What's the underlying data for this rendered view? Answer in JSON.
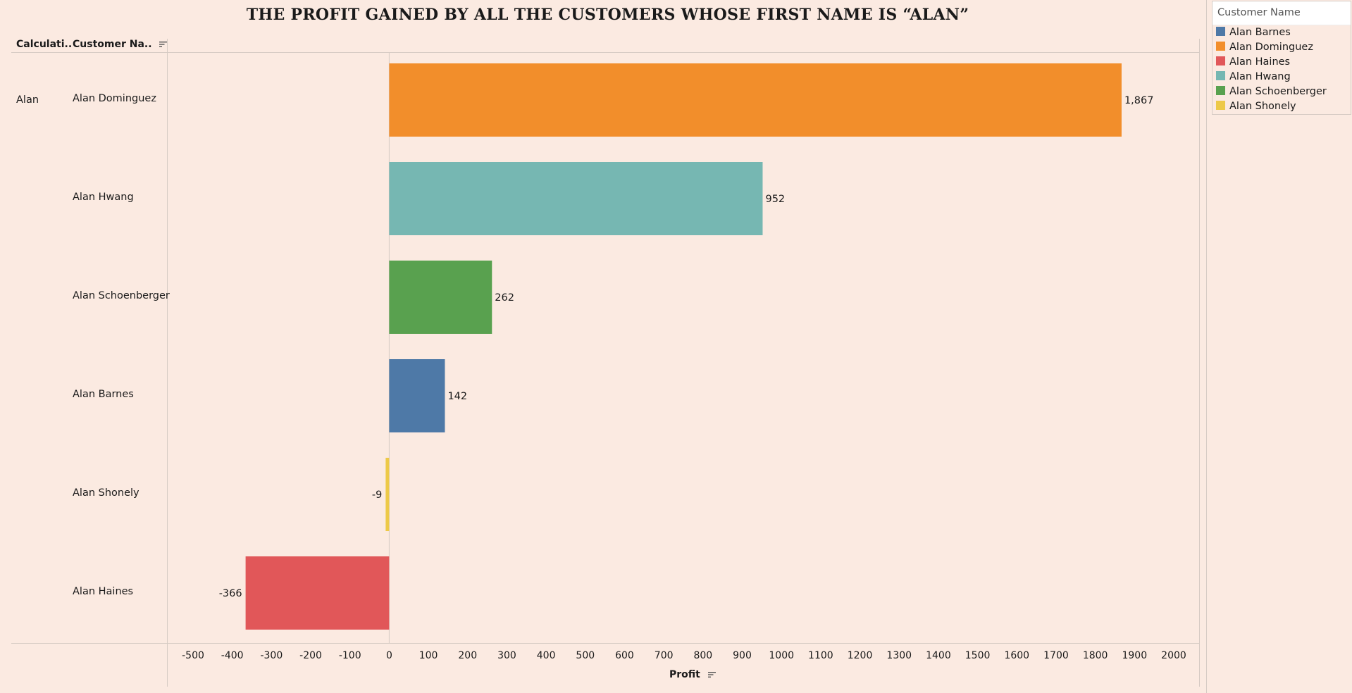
{
  "title": "THE PROFIT GAINED BY ALL THE CUSTOMERS WHOSE FIRST NAME IS “ALAN”",
  "headers": {
    "first_col": "Calculati..",
    "second_col": "Customer Na.."
  },
  "first_name_value": "Alan",
  "legend": {
    "title": "Customer Name",
    "items": [
      {
        "label": "Alan Barnes",
        "color": "#4e79a7"
      },
      {
        "label": "Alan Dominguez",
        "color": "#f28e2b"
      },
      {
        "label": "Alan Haines",
        "color": "#e15759"
      },
      {
        "label": "Alan Hwang",
        "color": "#76b7b2"
      },
      {
        "label": "Alan Schoenberger",
        "color": "#59a14f"
      },
      {
        "label": "Alan Shonely",
        "color": "#edc948"
      }
    ]
  },
  "chart_data": {
    "type": "bar",
    "orientation": "horizontal",
    "title": "THE PROFIT GAINED BY ALL THE CUSTOMERS WHOSE FIRST NAME IS “ALAN”",
    "xlabel": "Profit",
    "ylabel": "",
    "xlim": [
      -500,
      2000
    ],
    "x_ticks": [
      -500,
      -400,
      -300,
      -200,
      -100,
      0,
      100,
      200,
      300,
      400,
      500,
      600,
      700,
      800,
      900,
      1000,
      1100,
      1200,
      1300,
      1400,
      1500,
      1600,
      1700,
      1800,
      1900,
      2000
    ],
    "categories": [
      "Alan Dominguez",
      "Alan Hwang",
      "Alan Schoenberger",
      "Alan Barnes",
      "Alan Shonely",
      "Alan Haines"
    ],
    "values": [
      1867,
      952,
      262,
      142,
      -9,
      -366
    ],
    "data_labels": [
      "1,867",
      "952",
      "262",
      "142",
      "-9",
      "-366"
    ],
    "colors": [
      "#f28e2b",
      "#76b7b2",
      "#59a14f",
      "#4e79a7",
      "#edc948",
      "#e15759"
    ],
    "grid": false,
    "legend_position": "top-right"
  }
}
